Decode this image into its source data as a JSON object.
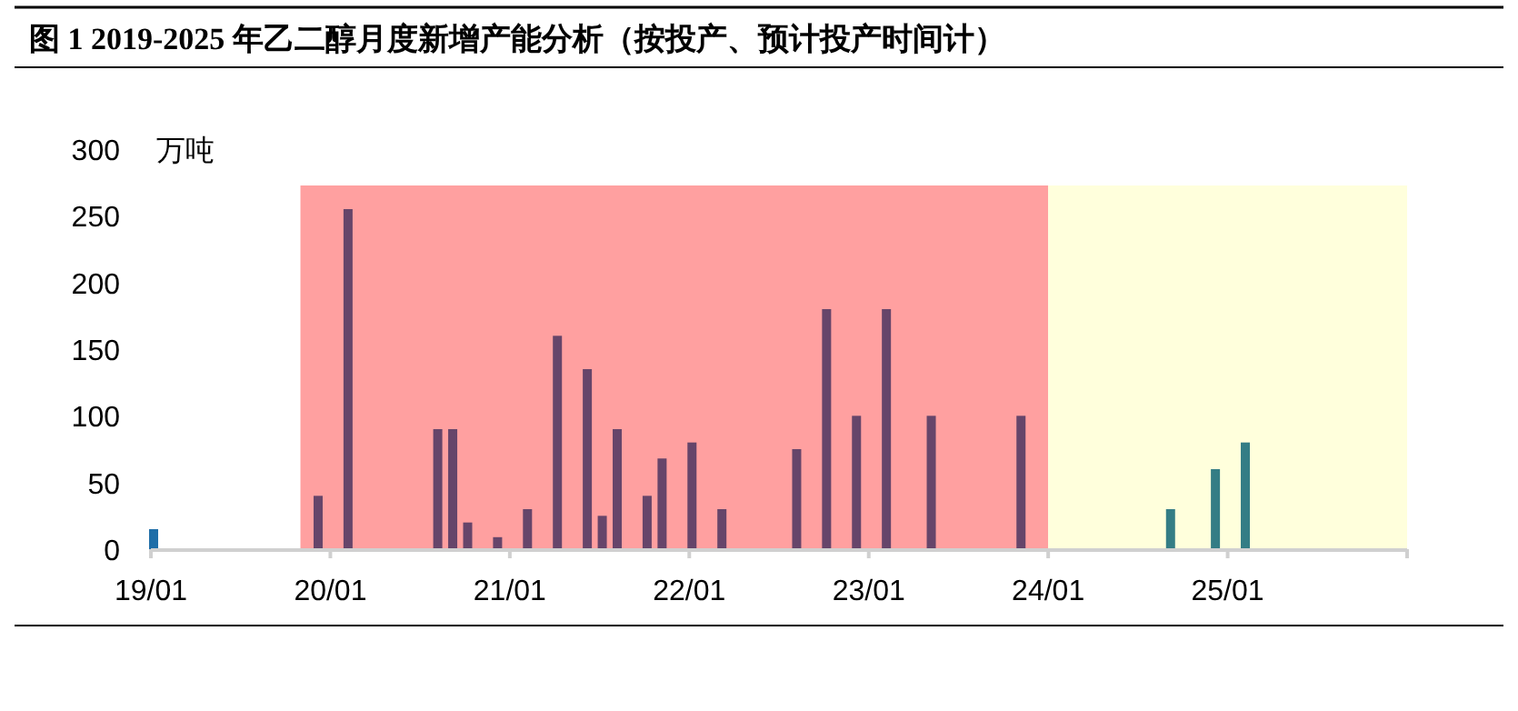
{
  "chart_data": {
    "type": "bar",
    "title": "图 1 2019-2025 年乙二醇月度新增产能分析（按投产、预计投产时间计）",
    "ylabel": "万吨",
    "series": [
      {
        "color": "#1f6ea8",
        "x": [
          "2019-01"
        ],
        "values": [
          15
        ]
      },
      {
        "color": "#66456a",
        "x": [
          "2019-12",
          "2020-02",
          "2020-08",
          "2020-09",
          "2020-10",
          "2020-12",
          "2021-02",
          "2021-04",
          "2021-06",
          "2021-07",
          "2021-08",
          "2021-10",
          "2021-11",
          "2022-01",
          "2022-03",
          "2022-08",
          "2022-10",
          "2022-12",
          "2023-02",
          "2023-05",
          "2023-11"
        ],
        "values": [
          40,
          255,
          90,
          90,
          20,
          9,
          30,
          160,
          135,
          25,
          90,
          40,
          68,
          80,
          30,
          75,
          180,
          100,
          180,
          100,
          100
        ]
      },
      {
        "color": "#347d85",
        "x": [
          "2024-09",
          "2024-12",
          "2025-02"
        ],
        "values": [
          30,
          60,
          80
        ]
      }
    ],
    "xlim": [
      "2019-01",
      "2026-01"
    ],
    "xticks": [
      {
        "value": "2019-01",
        "label": "19/01"
      },
      {
        "value": "2020-01",
        "label": "20/01"
      },
      {
        "value": "2021-01",
        "label": "21/01"
      },
      {
        "value": "2022-01",
        "label": "22/01"
      },
      {
        "value": "2023-01",
        "label": "23/01"
      },
      {
        "value": "2024-01",
        "label": "24/01"
      },
      {
        "value": "2025-01",
        "label": "25/01"
      },
      {
        "value": "2026-01",
        "label": null
      }
    ],
    "ylim": [
      0,
      300
    ],
    "yticks": [
      0,
      50,
      100,
      150,
      200,
      250,
      300
    ],
    "bands": [
      {
        "axis": "x",
        "from": "2019-11",
        "to": "2024-01",
        "label": null,
        "color": "#ffa0a0"
      },
      {
        "axis": "x",
        "from": "2024-01",
        "to": "2026-01",
        "label": null,
        "color": "#ffffdc"
      }
    ],
    "grid": false
  }
}
